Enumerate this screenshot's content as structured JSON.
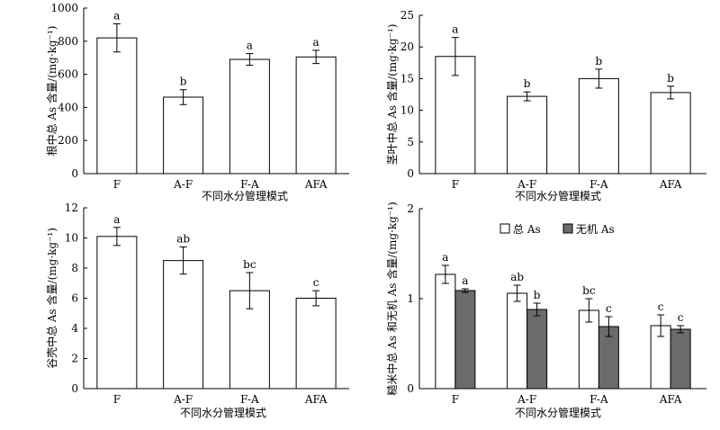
{
  "chart_data": [
    {
      "type": "bar",
      "categories": [
        "F",
        "A-F",
        "F-A",
        "AFA"
      ],
      "ylabel": "根中总 As 含量/(mg·kg⁻¹)",
      "xlabel": "不同水分管理模式",
      "ylim": [
        0,
        1000
      ],
      "yticks": [
        0,
        200,
        400,
        600,
        800,
        1000
      ],
      "series": [
        {
          "values": [
            820,
            462,
            690,
            705
          ],
          "errors": [
            85,
            45,
            35,
            40
          ],
          "letters": [
            "a",
            "b",
            "a",
            "a"
          ],
          "fill": "#ffffff"
        }
      ]
    },
    {
      "type": "bar",
      "categories": [
        "F",
        "A-F",
        "F-A",
        "AFA"
      ],
      "ylabel": "茎叶中总 As 含量/(mg·kg⁻¹)",
      "xlabel": "不同水分管理模式",
      "ylim": [
        0,
        25
      ],
      "yticks": [
        0,
        5,
        10,
        15,
        20,
        25
      ],
      "series": [
        {
          "values": [
            18.5,
            12.2,
            15.0,
            12.8
          ],
          "errors": [
            3.0,
            0.7,
            1.5,
            1.0
          ],
          "letters": [
            "a",
            "b",
            "b",
            "b"
          ],
          "fill": "#ffffff"
        }
      ]
    },
    {
      "type": "bar",
      "categories": [
        "F",
        "A-F",
        "F-A",
        "AFA"
      ],
      "ylabel": "谷壳中总 As 含量/(mg·kg⁻¹)",
      "xlabel": "不同水分管理模式",
      "ylim": [
        0,
        12
      ],
      "yticks": [
        0,
        2,
        4,
        6,
        8,
        10,
        12
      ],
      "series": [
        {
          "values": [
            10.1,
            8.5,
            6.5,
            6.0
          ],
          "errors": [
            0.6,
            0.9,
            1.2,
            0.5
          ],
          "letters": [
            "a",
            "ab",
            "bc",
            "c"
          ],
          "fill": "#ffffff"
        }
      ]
    },
    {
      "type": "bar",
      "categories": [
        "F",
        "A-F",
        "F-A",
        "AFA"
      ],
      "ylabel": "糙米中总 As 和无机 As 含量/(mg·kg⁻¹)",
      "xlabel": "不同水分管理模式",
      "ylim": [
        0,
        2
      ],
      "yticks": [
        0,
        1,
        2
      ],
      "legend": "top-right",
      "series": [
        {
          "name": "总 As",
          "values": [
            1.27,
            1.06,
            0.87,
            0.7
          ],
          "errors": [
            0.1,
            0.09,
            0.13,
            0.12
          ],
          "letters": [
            "a",
            "ab",
            "bc",
            "c"
          ],
          "fill": "#ffffff"
        },
        {
          "name": "无机 As",
          "values": [
            1.09,
            0.88,
            0.69,
            0.66
          ],
          "errors": [
            0.02,
            0.07,
            0.11,
            0.04
          ],
          "letters": [
            "a",
            "b",
            "c",
            "c"
          ],
          "fill": "#6b6b6b"
        }
      ]
    }
  ]
}
